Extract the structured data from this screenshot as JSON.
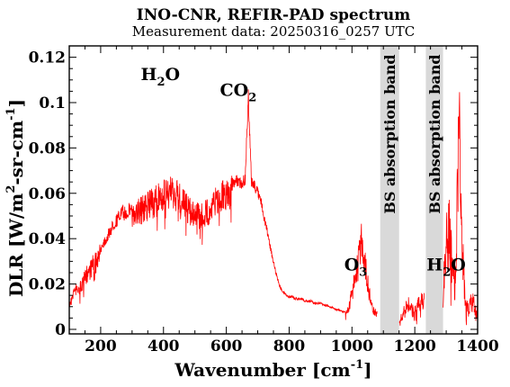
{
  "chart_data": {
    "type": "line",
    "title": "INO-CNR, REFIR-PAD spectrum",
    "subtitle": "Measurement data: 20250316_0257 UTC",
    "xlabel": {
      "main": "Wavenumber [cm",
      "sup": "-1",
      "tail": "]"
    },
    "ylabel": {
      "p1": "DLR [W/m",
      "sup1": "2",
      "p2": "-sr-cm",
      "sup2": "-1",
      "p3": "]"
    },
    "xlim": [
      100,
      1400
    ],
    "ylim": [
      -0.002,
      0.125
    ],
    "x_ticks": [
      200,
      400,
      600,
      800,
      1000,
      1200,
      1400
    ],
    "x_tick_labels": [
      "200",
      "400",
      "600",
      "800",
      "1000",
      "1200",
      "1400"
    ],
    "y_ticks": [
      0,
      0.02,
      0.04,
      0.06,
      0.08,
      0.1,
      0.12
    ],
    "y_tick_labels": [
      "0",
      "0.02",
      "0.04",
      "0.06",
      "0.08",
      "0.1",
      "0.12"
    ],
    "line_color": "#ff0000",
    "band_color": "#d9d9d9",
    "absorption_bands": [
      {
        "x_start": 1090,
        "x_end": 1150,
        "label": "BS absorption band"
      },
      {
        "x_start": 1235,
        "x_end": 1290,
        "label": "BS absorption band"
      }
    ],
    "annotations": [
      {
        "parts": [
          {
            "t": "H"
          },
          {
            "t": "2",
            "sub": true
          },
          {
            "t": "O"
          }
        ],
        "x": 390,
        "y": 0.11
      },
      {
        "parts": [
          {
            "t": "CO"
          },
          {
            "t": "2",
            "sub": true
          }
        ],
        "x": 638,
        "y": 0.103
      },
      {
        "parts": [
          {
            "t": "O"
          },
          {
            "t": "3",
            "sub": true
          }
        ],
        "x": 1012,
        "y": 0.026
      },
      {
        "parts": [
          {
            "t": "H"
          },
          {
            "t": "2",
            "sub": true
          },
          {
            "t": "O"
          }
        ],
        "x": 1300,
        "y": 0.026
      }
    ],
    "series": [
      {
        "values": [
          [
            100,
            0.012
          ],
          [
            110,
            0.018
          ],
          [
            120,
            0.021
          ],
          [
            130,
            0.02
          ],
          [
            140,
            0.024
          ],
          [
            150,
            0.026
          ],
          [
            160,
            0.03
          ],
          [
            170,
            0.032
          ],
          [
            180,
            0.034
          ],
          [
            190,
            0.036
          ],
          [
            200,
            0.038
          ],
          [
            210,
            0.041
          ],
          [
            220,
            0.043
          ],
          [
            230,
            0.046
          ],
          [
            240,
            0.049
          ],
          [
            250,
            0.051
          ],
          [
            260,
            0.053
          ],
          [
            270,
            0.055
          ],
          [
            280,
            0.054
          ],
          [
            290,
            0.056
          ],
          [
            300,
            0.057
          ],
          [
            310,
            0.057
          ],
          [
            320,
            0.058
          ],
          [
            330,
            0.059
          ],
          [
            340,
            0.06
          ],
          [
            350,
            0.061
          ],
          [
            360,
            0.062
          ],
          [
            370,
            0.063
          ],
          [
            380,
            0.064
          ],
          [
            390,
            0.065
          ],
          [
            400,
            0.066
          ],
          [
            410,
            0.067
          ],
          [
            420,
            0.068
          ],
          [
            430,
            0.067
          ],
          [
            440,
            0.066
          ],
          [
            450,
            0.065
          ],
          [
            460,
            0.063
          ],
          [
            470,
            0.061
          ],
          [
            480,
            0.059
          ],
          [
            490,
            0.058
          ],
          [
            500,
            0.057
          ],
          [
            510,
            0.056
          ],
          [
            520,
            0.056
          ],
          [
            530,
            0.057
          ],
          [
            540,
            0.058
          ],
          [
            550,
            0.06
          ],
          [
            560,
            0.062
          ],
          [
            570,
            0.064
          ],
          [
            580,
            0.065
          ],
          [
            590,
            0.066
          ],
          [
            600,
            0.067
          ],
          [
            610,
            0.067
          ],
          [
            620,
            0.068
          ],
          [
            630,
            0.068
          ],
          [
            640,
            0.068
          ],
          [
            650,
            0.067
          ],
          [
            660,
            0.069
          ],
          [
            670,
            0.106
          ],
          [
            680,
            0.068
          ],
          [
            690,
            0.066
          ],
          [
            700,
            0.063
          ],
          [
            710,
            0.059
          ],
          [
            720,
            0.052
          ],
          [
            730,
            0.045
          ],
          [
            740,
            0.038
          ],
          [
            750,
            0.031
          ],
          [
            760,
            0.025
          ],
          [
            770,
            0.02
          ],
          [
            780,
            0.017
          ],
          [
            790,
            0.016
          ],
          [
            800,
            0.015
          ],
          [
            810,
            0.015
          ],
          [
            820,
            0.014
          ],
          [
            830,
            0.014
          ],
          [
            840,
            0.014
          ],
          [
            850,
            0.013
          ],
          [
            860,
            0.013
          ],
          [
            870,
            0.013
          ],
          [
            880,
            0.012
          ],
          [
            890,
            0.012
          ],
          [
            900,
            0.012
          ],
          [
            910,
            0.011
          ],
          [
            920,
            0.011
          ],
          [
            930,
            0.01
          ],
          [
            940,
            0.01
          ],
          [
            950,
            0.009
          ],
          [
            960,
            0.009
          ],
          [
            970,
            0.008
          ],
          [
            980,
            0.008
          ],
          [
            990,
            0.012
          ],
          [
            1000,
            0.02
          ],
          [
            1010,
            0.028
          ],
          [
            1020,
            0.036
          ],
          [
            1030,
            0.05
          ],
          [
            1040,
            0.04
          ],
          [
            1050,
            0.025
          ],
          [
            1060,
            0.015
          ],
          [
            1070,
            0.01
          ],
          [
            1080,
            0.008
          ],
          [
            1150,
            0.006
          ],
          [
            1160,
            0.008
          ],
          [
            1170,
            0.012
          ],
          [
            1180,
            0.015
          ],
          [
            1190,
            0.012
          ],
          [
            1200,
            0.01
          ],
          [
            1210,
            0.014
          ],
          [
            1220,
            0.018
          ],
          [
            1230,
            0.016
          ],
          [
            1290,
            0.02
          ],
          [
            1300,
            0.05
          ],
          [
            1310,
            0.06
          ],
          [
            1320,
            0.035
          ],
          [
            1330,
            0.025
          ],
          [
            1340,
            0.12
          ],
          [
            1350,
            0.06
          ],
          [
            1360,
            0.015
          ],
          [
            1370,
            0.012
          ],
          [
            1380,
            0.018
          ],
          [
            1390,
            0.014
          ],
          [
            1400,
            0.01
          ]
        ]
      }
    ]
  }
}
